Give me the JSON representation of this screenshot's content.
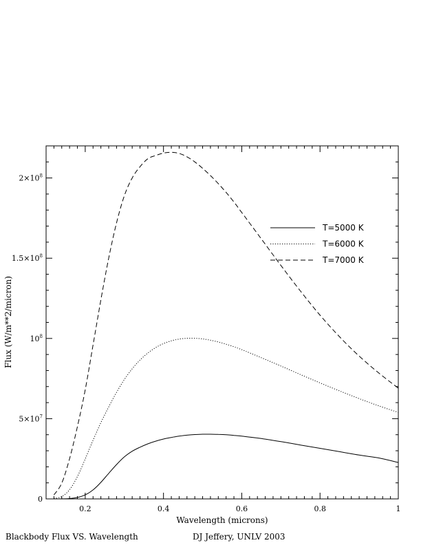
{
  "chart_data": {
    "type": "line",
    "title": "",
    "xlabel": "Wavelength (microns)",
    "ylabel": "Flux (W/m**2/micron)",
    "xlim": [
      0.1,
      1.0
    ],
    "ylim": [
      0,
      220000000
    ],
    "x_ticks": [
      {
        "value": 0.2,
        "label": "0.2"
      },
      {
        "value": 0.4,
        "label": "0.4"
      },
      {
        "value": 0.6,
        "label": "0.6"
      },
      {
        "value": 0.8,
        "label": "0.8"
      },
      {
        "value": 1.0,
        "label": "1"
      }
    ],
    "y_ticks": [
      {
        "value": 0,
        "base": "0",
        "exp": ""
      },
      {
        "value": 50000000,
        "base": "5×10",
        "exp": "7"
      },
      {
        "value": 100000000,
        "base": "10",
        "exp": "8"
      },
      {
        "value": 150000000,
        "base": "1.5×10",
        "exp": "8"
      },
      {
        "value": 200000000,
        "base": "2×10",
        "exp": "8"
      }
    ],
    "grid": false,
    "legend_position": "top-right",
    "series": [
      {
        "name": "T=5000 K",
        "style": "solid",
        "x": [
          0.12,
          0.14,
          0.16,
          0.18,
          0.2,
          0.22,
          0.24,
          0.26,
          0.28,
          0.3,
          0.32,
          0.34,
          0.36,
          0.38,
          0.4,
          0.42,
          0.44,
          0.46,
          0.48,
          0.5,
          0.52,
          0.54,
          0.56,
          0.58,
          0.6,
          0.65,
          0.7,
          0.75,
          0.8,
          0.85,
          0.9,
          0.95,
          1.0
        ],
        "y": [
          2400,
          35000,
          220000,
          880000,
          2510000,
          5600000,
          10300000,
          15900000,
          21400000,
          26200000,
          29700000,
          32200000,
          34300000,
          36000000,
          37300000,
          38300000,
          39100000,
          39700000,
          40100000,
          40300000,
          40300000,
          40200000,
          40000000,
          39600000,
          39100000,
          37600000,
          35700000,
          33600000,
          31500000,
          29400000,
          27300000,
          25500000,
          22700000
        ]
      },
      {
        "name": "T=6000 K",
        "style": "dotted",
        "x": [
          0.12,
          0.14,
          0.16,
          0.18,
          0.2,
          0.22,
          0.24,
          0.26,
          0.28,
          0.3,
          0.32,
          0.34,
          0.36,
          0.38,
          0.4,
          0.42,
          0.44,
          0.46,
          0.48,
          0.5,
          0.52,
          0.54,
          0.56,
          0.58,
          0.6,
          0.65,
          0.7,
          0.75,
          0.8,
          0.85,
          0.9,
          0.95,
          1.0
        ],
        "y": [
          170000,
          1470000,
          5700000,
          13900000,
          24900000,
          36600000,
          47500000,
          57300000,
          66400000,
          74400000,
          81100000,
          86500000,
          90900000,
          94300000,
          96800000,
          98500000,
          99600000,
          100100000,
          100100000,
          99700000,
          98900000,
          97800000,
          96400000,
          94800000,
          93000000,
          88000000,
          82800000,
          77500000,
          72300000,
          67300000,
          62500000,
          58000000,
          53900000
        ]
      },
      {
        "name": "T=7000 K",
        "style": "dashed",
        "x": [
          0.12,
          0.14,
          0.16,
          0.18,
          0.2,
          0.22,
          0.24,
          0.26,
          0.28,
          0.3,
          0.32,
          0.34,
          0.36,
          0.38,
          0.4,
          0.42,
          0.44,
          0.46,
          0.48,
          0.5,
          0.52,
          0.54,
          0.56,
          0.58,
          0.6,
          0.65,
          0.7,
          0.75,
          0.8,
          0.85,
          0.9,
          0.95,
          1.0
        ],
        "y": [
          2500000,
          9800000,
          25000000,
          45000000,
          68000000,
          96000000,
          124000000,
          150000000,
          172000000,
          189000000,
          200000000,
          207000000,
          212000000,
          214000000,
          215500000,
          216000000,
          215300000,
          213200000,
          210000000,
          206000000,
          201500000,
          196500000,
          191000000,
          185000000,
          178500000,
          162000000,
          145500000,
          129500000,
          114500000,
          101000000,
          89000000,
          78500000,
          69000000
        ]
      }
    ],
    "footer_left": "Blackbody Flux VS. Wavelength",
    "footer_right": "DJ Jeffery, UNLV 2003"
  }
}
